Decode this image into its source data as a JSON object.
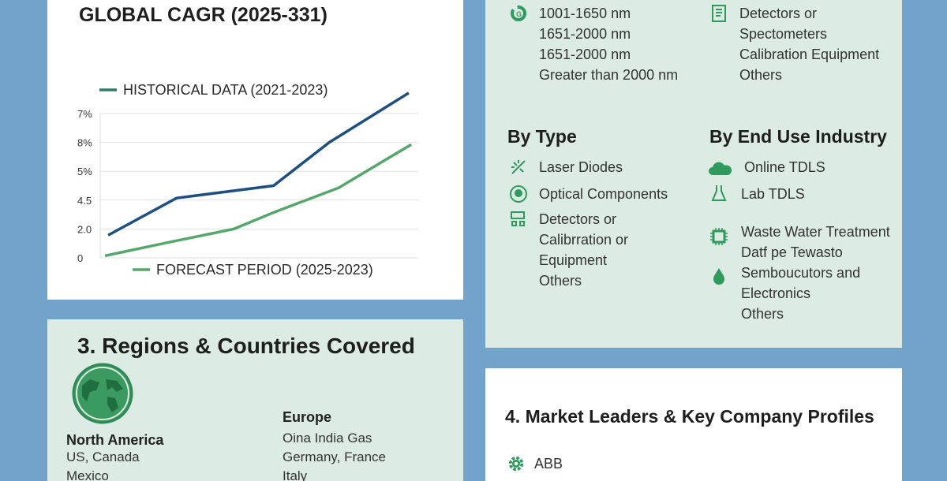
{
  "colors": {
    "background": "#72a3cb",
    "accent": "#2e9a5c",
    "historical": "#1d4f80",
    "forecast": "#55a86b",
    "card_green": "#dcebe3"
  },
  "cagr_card": {
    "title": "GLOBAL CAGR (2025-331)"
  },
  "chart_data": {
    "type": "line",
    "title": "GLOBAL CAGR (2025-331)",
    "y_tick_labels": [
      "0",
      "2.0",
      "4.5",
      "5%",
      "8%",
      "7%"
    ],
    "ylim": [
      0,
      7
    ],
    "xlim": [
      0,
      10
    ],
    "grid": true,
    "legend_placement": "top and bottom",
    "series": [
      {
        "name": "HISTORICAL DATA (2021-2023)",
        "color": "#1d4f80",
        "x": [
          0.25,
          2.4,
          5.45,
          7.2,
          9.7
        ],
        "y": [
          1.1,
          2.9,
          3.5,
          5.6,
          8.0
        ]
      },
      {
        "name": "FORECAST PERIOD (2025-2023)",
        "color": "#55a86b",
        "x": [
          0.15,
          2.3,
          4.2,
          5.45,
          7.5,
          9.78
        ],
        "y": [
          0.1,
          0.8,
          1.4,
          2.2,
          3.4,
          5.5
        ]
      }
    ]
  },
  "segments": {
    "wavelength": [
      "1001-1650 nm",
      "1651-2000 nm",
      "1651-2000 nm",
      "Greater than 2000 nm"
    ],
    "component": [
      "Detectors or",
      "Spectometers",
      "Calibration Equipment",
      "Others"
    ],
    "by_type": {
      "title": "By Type",
      "items": [
        "Laser Diodes",
        "Optical Components",
        "Detectors or",
        "Calibrration or",
        "Equipment",
        "Others"
      ]
    },
    "by_industry": {
      "title": "By End Use Industry",
      "items": [
        "Online TDLS",
        "Lab TDLS",
        "Waste Water Treatment",
        "Datf pe Tewasto",
        "Semboucutors and",
        "Electronics",
        "Others"
      ]
    }
  },
  "regions": {
    "title": "3. Regions & Countries Covered",
    "north_america": {
      "title": "North America",
      "lines": [
        "US, Canada",
        "Mexico"
      ]
    },
    "europe": {
      "title": "Europe",
      "lines": [
        "Oina India Gas",
        "Germany, France",
        "Italy"
      ]
    }
  },
  "leaders": {
    "title": "4. Market Leaders & Key Company Profiles",
    "companies": [
      "ABB"
    ]
  }
}
